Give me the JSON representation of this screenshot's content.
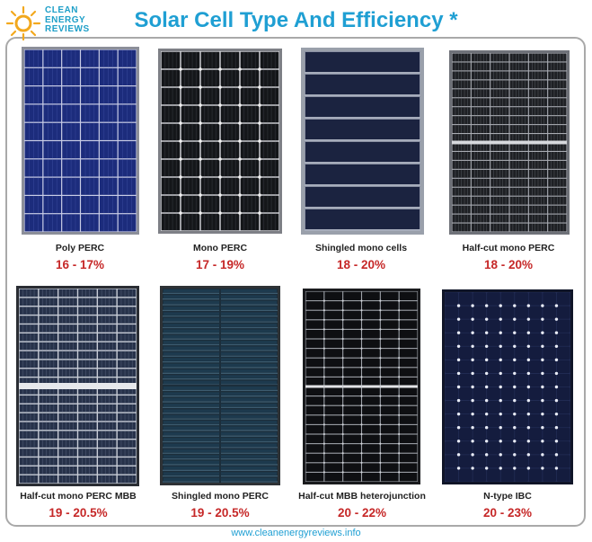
{
  "header": {
    "title": "Solar Cell Type And Efficiency *",
    "logo": [
      "CLEAN",
      "ENERGY",
      "REVIEWS"
    ],
    "logo_icon": "sun-icon"
  },
  "panels": [
    {
      "label": "Poly PERC",
      "efficiency": "16 - 17%"
    },
    {
      "label": "Mono PERC",
      "efficiency": "17 - 19%"
    },
    {
      "label": "Shingled  mono cells",
      "efficiency": "18 - 20%"
    },
    {
      "label": "Half-cut mono PERC",
      "efficiency": "18 - 20%"
    },
    {
      "label": "Half-cut mono PERC MBB",
      "efficiency": "19 - 20.5%"
    },
    {
      "label": "Shingled mono PERC",
      "efficiency": "19 - 20.5%"
    },
    {
      "label": "Half-cut MBB heterojunction",
      "efficiency": "20 - 22%"
    },
    {
      "label": "N-type IBC",
      "efficiency": "20 - 23%"
    }
  ],
  "footer": {
    "url": "www.cleanenergyreviews.info"
  },
  "colors": {
    "title": "#1f9fd3",
    "efficiency": "#c62828",
    "logo_accent": "#f2a81d"
  }
}
